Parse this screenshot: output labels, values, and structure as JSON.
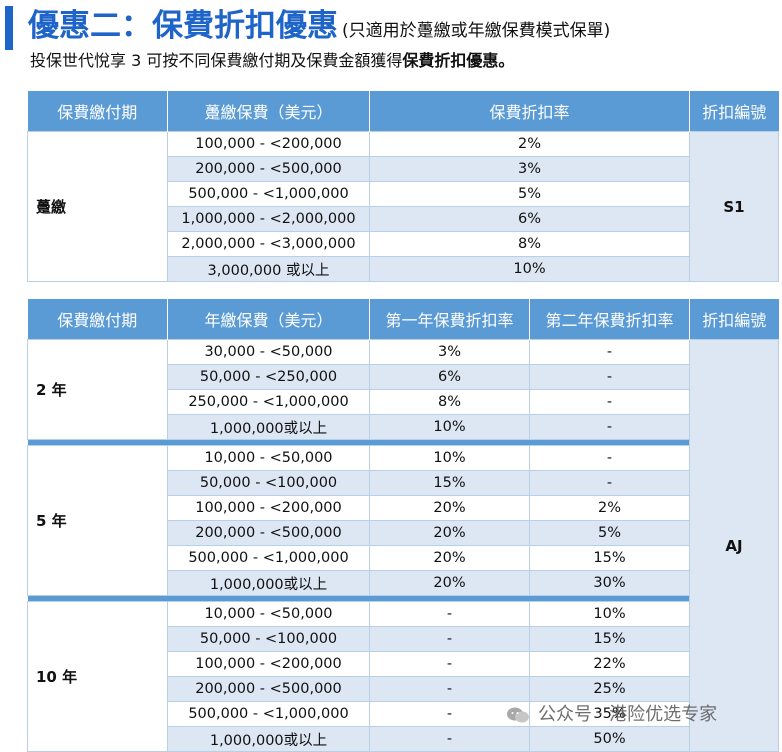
{
  "header": {
    "title": "優惠二：保費折扣優惠",
    "title_note": "(只適用於躉繳或年繳保費模式保單)",
    "subtitle_prefix": "投保世代悅享 3 可按不同保費繳付期及保費金額獲得",
    "subtitle_bold": "保費折扣優惠。"
  },
  "table1": {
    "headers": [
      "保費繳付期",
      "躉繳保費（美元）",
      "保費折扣率",
      "折扣編號"
    ],
    "period": "躉繳",
    "code": "S1",
    "rows": [
      {
        "range": "100,000 - <200,000",
        "rate": "2%"
      },
      {
        "range": "200,000 - <500,000",
        "rate": "3%"
      },
      {
        "range": "500,000 - <1,000,000",
        "rate": "5%"
      },
      {
        "range": "1,000,000 - <2,000,000",
        "rate": "6%"
      },
      {
        "range": "2,000,000 - <3,000,000",
        "rate": "8%"
      },
      {
        "range": "3,000,000 或以上",
        "rate": "10%"
      }
    ]
  },
  "table2": {
    "headers": [
      "保費繳付期",
      "年繳保費（美元）",
      "第一年保費折扣率",
      "第二年保費折扣率",
      "折扣編號"
    ],
    "code": "AJ",
    "groups": [
      {
        "period": "2 年",
        "rows": [
          {
            "range": "30,000 - <50,000",
            "y1": "3%",
            "y2": "-"
          },
          {
            "range": "50,000 - <250,000",
            "y1": "6%",
            "y2": "-"
          },
          {
            "range": "250,000 - <1,000,000",
            "y1": "8%",
            "y2": "-"
          },
          {
            "range": "1,000,000或以上",
            "y1": "10%",
            "y2": "-"
          }
        ]
      },
      {
        "period": "5 年",
        "rows": [
          {
            "range": "10,000 - <50,000",
            "y1": "10%",
            "y2": "-"
          },
          {
            "range": "50,000 - <100,000",
            "y1": "15%",
            "y2": "-"
          },
          {
            "range": "100,000 - <200,000",
            "y1": "20%",
            "y2": "2%"
          },
          {
            "range": "200,000 - <500,000",
            "y1": "20%",
            "y2": "5%"
          },
          {
            "range": "500,000 - <1,000,000",
            "y1": "20%",
            "y2": "15%"
          },
          {
            "range": "1,000,000或以上",
            "y1": "20%",
            "y2": "30%"
          }
        ]
      },
      {
        "period": "10 年",
        "rows": [
          {
            "range": "10,000 - <50,000",
            "y1": "-",
            "y2": "10%"
          },
          {
            "range": "50,000 - <100,000",
            "y1": "-",
            "y2": "15%"
          },
          {
            "range": "100,000 - <200,000",
            "y1": "-",
            "y2": "22%"
          },
          {
            "range": "200,000 - <500,000",
            "y1": "-",
            "y2": "25%"
          },
          {
            "range": "500,000 - <1,000,000",
            "y1": "-",
            "y2": "35%"
          },
          {
            "range": "1,000,000或以上",
            "y1": "-",
            "y2": "50%"
          }
        ]
      }
    ]
  },
  "watermark": {
    "text": "公众号 · 港险优选专家",
    "icon": "wechat-icon"
  }
}
